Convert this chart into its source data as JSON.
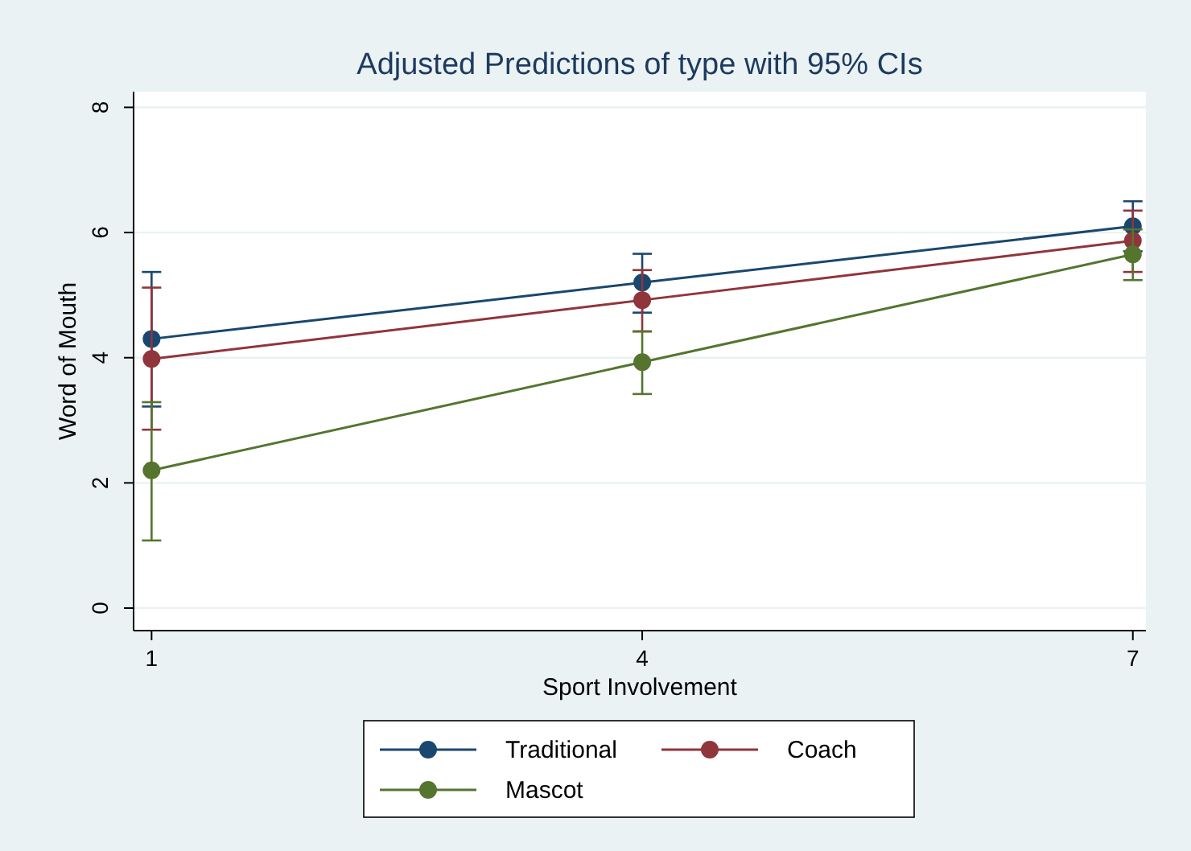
{
  "chart_data": {
    "type": "line",
    "title": "Adjusted Predictions of type with 95% CIs",
    "xlabel": "Sport Involvement",
    "ylabel": "Word of Mouth",
    "x": [
      1,
      4,
      7
    ],
    "xlim": [
      0.89,
      7.08
    ],
    "xticks": [
      1,
      4,
      7
    ],
    "ylim": [
      -0.36,
      8.25
    ],
    "yticks": [
      0,
      2,
      4,
      6,
      8
    ],
    "grid": "y",
    "legend": "bottom",
    "marker": "circle",
    "line_style": "solid",
    "series": [
      {
        "name": "Traditional",
        "color": "#1a476f",
        "values": [
          4.3,
          5.2,
          6.1
        ],
        "errors": [
          [
            3.22,
            5.37
          ],
          [
            4.72,
            5.66
          ],
          [
            5.7,
            6.5
          ]
        ]
      },
      {
        "name": "Coach",
        "color": "#90353b",
        "values": [
          3.98,
          4.92,
          5.87
        ],
        "errors": [
          [
            2.85,
            5.12
          ],
          [
            4.42,
            5.4
          ],
          [
            5.37,
            6.35
          ]
        ]
      },
      {
        "name": "Mascot",
        "color": "#55752f",
        "values": [
          2.2,
          3.93,
          5.65
        ],
        "errors": [
          [
            1.08,
            3.29
          ],
          [
            3.42,
            4.42
          ],
          [
            5.24,
            6.05
          ]
        ]
      }
    ]
  }
}
